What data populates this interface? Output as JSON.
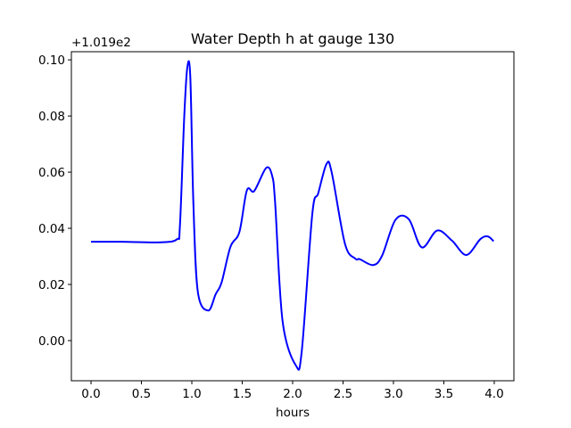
{
  "chart_data": {
    "type": "line",
    "title": "Water Depth h at gauge 130",
    "xlabel": "hours",
    "ylabel": "",
    "y_offset_label": "+1.019e2",
    "xlim": [
      -0.195,
      4.195
    ],
    "ylim": [
      -0.0143,
      0.1029
    ],
    "xticks": [
      0.0,
      0.5,
      1.0,
      1.5,
      2.0,
      2.5,
      3.0,
      3.5,
      4.0
    ],
    "xtick_labels": [
      "0.0",
      "0.5",
      "1.0",
      "1.5",
      "2.0",
      "2.5",
      "3.0",
      "3.5",
      "4.0"
    ],
    "yticks": [
      0.0,
      0.02,
      0.04,
      0.06,
      0.08,
      0.1
    ],
    "ytick_labels": [
      "0.00",
      "0.02",
      "0.04",
      "0.06",
      "0.08",
      "0.10"
    ],
    "grid": false,
    "series": [
      {
        "name": "h",
        "color": "#0000ff",
        "x": [
          0.0,
          0.3,
          0.69,
          0.852,
          0.882,
          0.925,
          0.956,
          0.985,
          1.015,
          1.059,
          1.162,
          1.236,
          1.295,
          1.383,
          1.472,
          1.546,
          1.619,
          1.737,
          1.796,
          1.826,
          1.9,
          2.033,
          2.091,
          2.195,
          2.254,
          2.336,
          2.387,
          2.519,
          2.622,
          2.666,
          2.799,
          2.888,
          3.02,
          3.153,
          3.281,
          3.434,
          3.581,
          3.723,
          3.861,
          3.935,
          3.994
        ],
        "y": [
          0.0352,
          0.0352,
          0.035,
          0.0361,
          0.041,
          0.08,
          0.0975,
          0.0938,
          0.0493,
          0.0175,
          0.0107,
          0.0165,
          0.0207,
          0.0334,
          0.0387,
          0.0535,
          0.0533,
          0.0615,
          0.0588,
          0.0493,
          0.007,
          -0.0089,
          -0.0036,
          0.0451,
          0.0525,
          0.0629,
          0.06,
          0.0345,
          0.0292,
          0.029,
          0.0269,
          0.0303,
          0.043,
          0.0432,
          0.0332,
          0.0392,
          0.0356,
          0.0305,
          0.0361,
          0.0371,
          0.0354
        ]
      }
    ]
  }
}
